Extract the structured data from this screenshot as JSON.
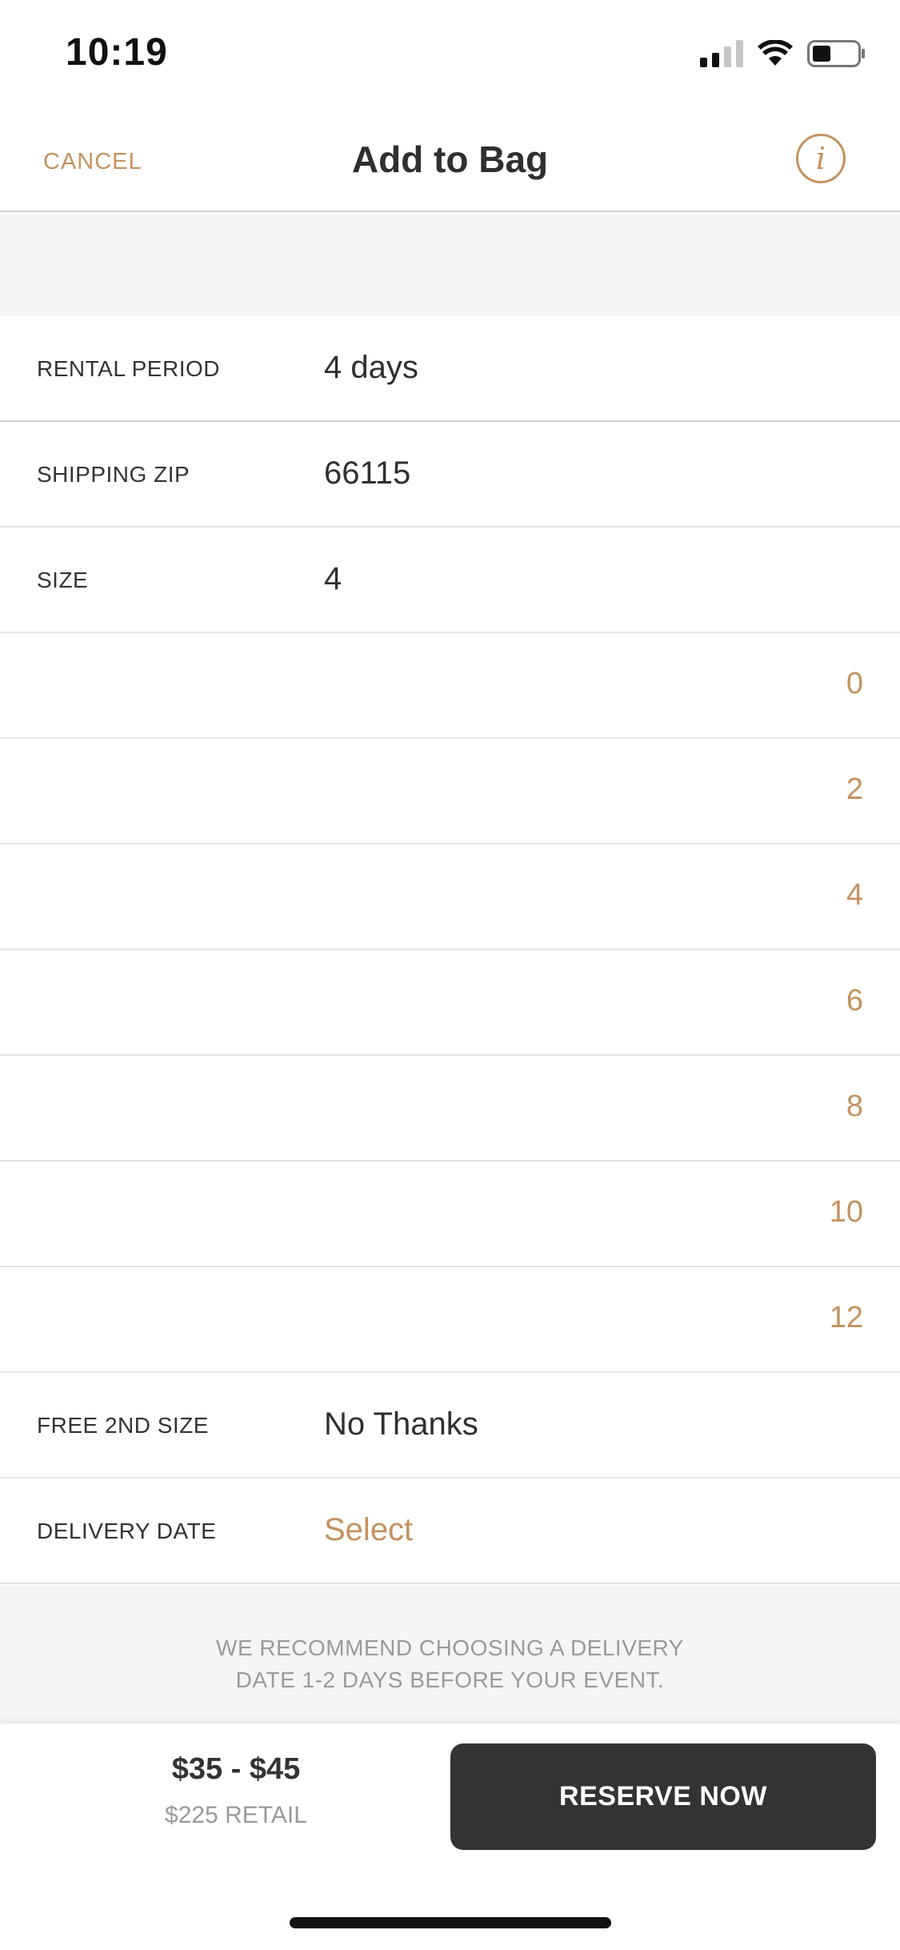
{
  "status_bar": {
    "time": "10:19",
    "icons": [
      "signal-icon",
      "wifi-icon",
      "battery-icon"
    ]
  },
  "nav": {
    "cancel_label": "CANCEL",
    "title": "Add to Bag",
    "info_icon": "i"
  },
  "form": {
    "rental_period": {
      "label": "RENTAL PERIOD",
      "value": "4 days"
    },
    "shipping_zip": {
      "label": "SHIPPING ZIP",
      "value": "66115"
    },
    "size": {
      "label": "SIZE",
      "value": "4"
    },
    "size_options": [
      "0",
      "2",
      "4",
      "6",
      "8",
      "10",
      "12"
    ],
    "free_second_size": {
      "label": "FREE 2ND SIZE",
      "value": "No Thanks"
    },
    "delivery_date": {
      "label": "DELIVERY DATE",
      "value": "Select"
    }
  },
  "recommend": {
    "line1": "WE RECOMMEND CHOOSING A DELIVERY",
    "line2": "DATE 1-2 DAYS BEFORE YOUR EVENT."
  },
  "footer": {
    "price": "$35 - $45",
    "retail": "$225 RETAIL",
    "reserve_label": "RESERVE NOW"
  },
  "colors": {
    "accent": "#c4925f",
    "button": "#333333",
    "muted": "#9a9a9a"
  }
}
